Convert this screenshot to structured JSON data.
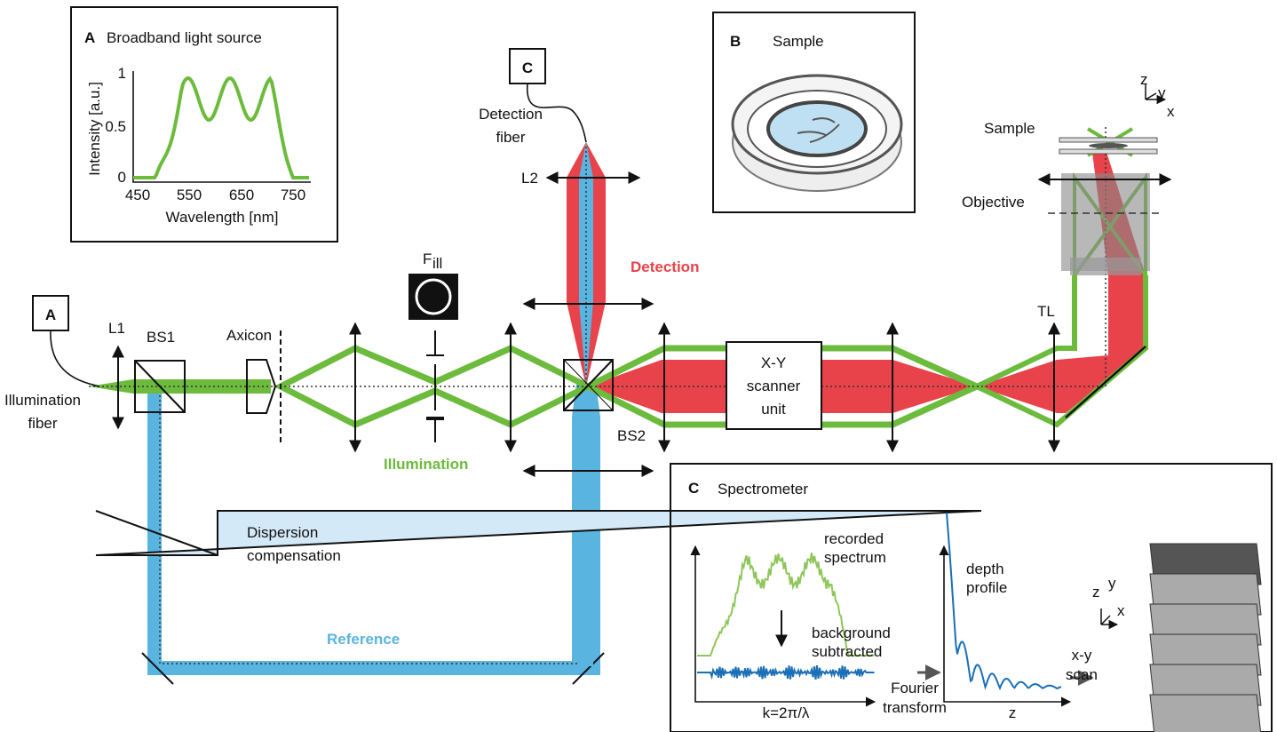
{
  "panel_a": {
    "label": "A",
    "title": "Broadband light source",
    "y_label": "Intensity [a.u.]",
    "y_ticks": [
      "1",
      "0.5",
      "0"
    ],
    "x_ticks": [
      "450",
      "550",
      "650",
      "750"
    ],
    "x_label": "Wavelength [nm]"
  },
  "panel_b": {
    "label": "B",
    "title": "Sample"
  },
  "panel_c": {
    "label": "C",
    "title": "Spectrometer",
    "recorded": [
      "recorded",
      "spectrum"
    ],
    "background": [
      "background",
      "subtracted"
    ],
    "k_axis": "k=2π/λ",
    "fourier": [
      "Fourier",
      "transform"
    ],
    "depth": [
      "depth",
      "profile"
    ],
    "z_axis": "z",
    "scan": [
      "x-y",
      "scan"
    ],
    "axes": [
      "z",
      "y",
      "x"
    ]
  },
  "setup": {
    "source_box": "A",
    "spectrometer_box": "C",
    "illumination_fiber": [
      "Illumination",
      "fiber"
    ],
    "detection_fiber": [
      "Detection",
      "fiber"
    ],
    "l1": "L1",
    "bs1": "BS1",
    "axicon": "Axicon",
    "filter": "F",
    "filter_sub": "ill",
    "l2": "L2",
    "bs2": "BS2",
    "tl": "TL",
    "scanner": [
      "X-Y",
      "scanner",
      "unit"
    ],
    "sample": "Sample",
    "objective": "Objective",
    "axes": [
      "z",
      "y",
      "x"
    ],
    "detection": "Detection",
    "illumination": "Illumination",
    "reference": "Reference",
    "dispersion": [
      "Dispersion",
      "compensation"
    ]
  }
}
